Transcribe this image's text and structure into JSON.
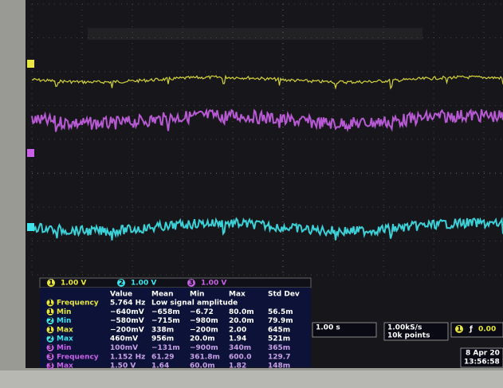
{
  "channels": [
    {
      "number": "1",
      "scale": "1.00 V"
    },
    {
      "number": "2",
      "scale": "1.00 V"
    },
    {
      "number": "3",
      "scale": "1.00 V"
    }
  ],
  "measurements": {
    "columns": [
      "Value",
      "Mean",
      "Min",
      "Max",
      "Std Dev"
    ],
    "rows": [
      {
        "channel": "1",
        "name": "Frequency",
        "cells": [
          "5.764 Hz",
          "Low signal amplitude"
        ]
      },
      {
        "channel": "1",
        "name": "Min",
        "cells": [
          "−640mV",
          "−658m",
          "−6.72",
          "80.0m",
          "56.5m"
        ]
      },
      {
        "channel": "2",
        "name": "Min",
        "cells": [
          "−580mV",
          "−715m",
          "−980m",
          "20.0m",
          "79.9m"
        ]
      },
      {
        "channel": "1",
        "name": "Max",
        "cells": [
          "−200mV",
          "338m",
          "−200m",
          "2.00",
          "645m"
        ]
      },
      {
        "channel": "2",
        "name": "Max",
        "cells": [
          "460mV",
          "956m",
          "20.0m",
          "1.94",
          "521m"
        ]
      },
      {
        "channel": "3",
        "name": "Min",
        "cells": [
          "100mV",
          "−131m",
          "−900m",
          "340m",
          "365m"
        ]
      },
      {
        "channel": "3",
        "name": "Frequency",
        "cells": [
          "1.152 Hz",
          "61.29",
          "361.8m",
          "600.0",
          "129.7"
        ]
      },
      {
        "channel": "3",
        "name": "Max",
        "cells": [
          "1.50 V",
          "1.64",
          "60.0m",
          "1.82",
          "148m"
        ]
      }
    ]
  },
  "timebase": "1.00 s",
  "sample_rate": "1.00kS/s",
  "record_length": "10k points",
  "trigger": {
    "channel": "1",
    "level": "0.00"
  },
  "date": "8 Apr 20",
  "time": "13:56:58"
}
